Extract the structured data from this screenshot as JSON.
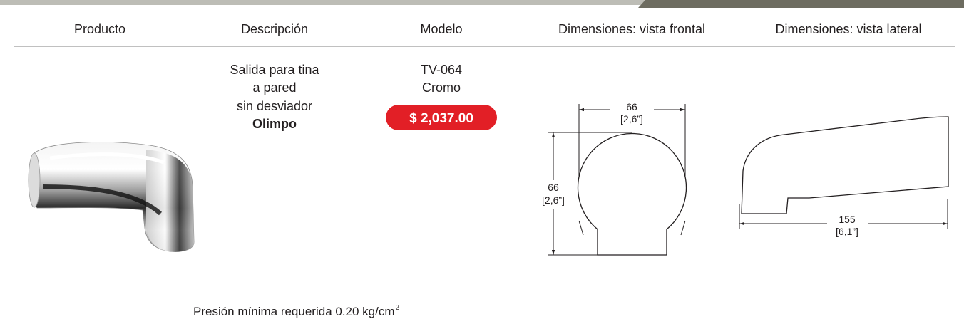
{
  "header": {
    "columns": [
      "Producto",
      "Descripción",
      "Modelo",
      "Dimensiones: vista frontal",
      "Dimensiones: vista lateral"
    ]
  },
  "product": {
    "description": [
      "Salida para tina",
      "a pared",
      "sin desviador"
    ],
    "line": "Olimpo",
    "model": "TV-064",
    "finish": "Cromo",
    "price": "$ 2,037.00"
  },
  "front_view": {
    "width": "66",
    "width_in": "[2,6”]",
    "height": "66",
    "height_in": "[2,6”]"
  },
  "side_view": {
    "length": "155",
    "length_in": "[6,1”]"
  },
  "note": {
    "text": "Presión mínima requerida 0.20 kg/cm",
    "superscript": "2"
  }
}
